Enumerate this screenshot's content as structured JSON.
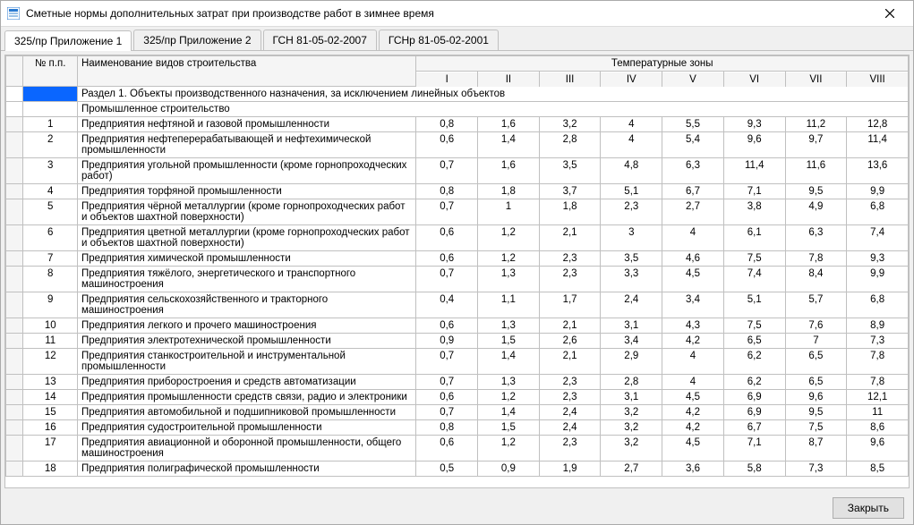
{
  "window": {
    "title": "Сметные нормы дополнительных затрат при производстве работ в зимнее время"
  },
  "tabs": {
    "items": [
      {
        "label": "325/пр Приложение 1",
        "active": true
      },
      {
        "label": "325/пр Приложение 2",
        "active": false
      },
      {
        "label": "ГСН 81-05-02-2007",
        "active": false
      },
      {
        "label": "ГСНр 81-05-02-2001",
        "active": false
      }
    ]
  },
  "table": {
    "headers": {
      "num": "№ п.п.",
      "name": "Наименование видов строительства",
      "zones_title": "Температурные зоны",
      "zones": [
        "I",
        "II",
        "III",
        "IV",
        "V",
        "VI",
        "VII",
        "VIII"
      ]
    },
    "rows": [
      {
        "type": "section1",
        "name": "Раздел 1. Объекты производственного назначения, за исключением линейных объектов"
      },
      {
        "type": "section",
        "name": "Промышленное строительство"
      },
      {
        "type": "data",
        "num": "1",
        "name": "Предприятия нефтяной и газовой промышленности",
        "v": [
          "0,8",
          "1,6",
          "3,2",
          "4",
          "5,5",
          "9,3",
          "11,2",
          "12,8"
        ]
      },
      {
        "type": "data",
        "num": "2",
        "name": "Предприятия нефтеперерабатывающей и нефтехимической промышленности",
        "v": [
          "0,6",
          "1,4",
          "2,8",
          "4",
          "5,4",
          "9,6",
          "9,7",
          "11,4"
        ]
      },
      {
        "type": "data",
        "num": "3",
        "name": "Предприятия угольной промышленности (кроме горнопроходческих работ)",
        "v": [
          "0,7",
          "1,6",
          "3,5",
          "4,8",
          "6,3",
          "11,4",
          "11,6",
          "13,6"
        ]
      },
      {
        "type": "data",
        "num": "4",
        "name": "Предприятия торфяной промышленности",
        "v": [
          "0,8",
          "1,8",
          "3,7",
          "5,1",
          "6,7",
          "7,1",
          "9,5",
          "9,9"
        ]
      },
      {
        "type": "data",
        "num": "5",
        "name": "Предприятия чёрной металлургии (кроме горнопроходческих работ и объектов шахтной поверхности)",
        "v": [
          "0,7",
          "1",
          "1,8",
          "2,3",
          "2,7",
          "3,8",
          "4,9",
          "6,8"
        ]
      },
      {
        "type": "data",
        "num": "6",
        "name": "Предприятия цветной металлургии (кроме горнопроходческих работ и объектов шахтной поверхности)",
        "v": [
          "0,6",
          "1,2",
          "2,1",
          "3",
          "4",
          "6,1",
          "6,3",
          "7,4"
        ]
      },
      {
        "type": "data",
        "num": "7",
        "name": "Предприятия химической промышленности",
        "v": [
          "0,6",
          "1,2",
          "2,3",
          "3,5",
          "4,6",
          "7,5",
          "7,8",
          "9,3"
        ]
      },
      {
        "type": "data",
        "num": "8",
        "name": "Предприятия тяжёлого, энергетического и транспортного машиностроения",
        "v": [
          "0,7",
          "1,3",
          "2,3",
          "3,3",
          "4,5",
          "7,4",
          "8,4",
          "9,9"
        ]
      },
      {
        "type": "data",
        "num": "9",
        "name": "Предприятия сельскохозяйственного и тракторного машиностроения",
        "v": [
          "0,4",
          "1,1",
          "1,7",
          "2,4",
          "3,4",
          "5,1",
          "5,7",
          "6,8"
        ]
      },
      {
        "type": "data",
        "num": "10",
        "name": "Предприятия легкого и прочего машиностроения",
        "v": [
          "0,6",
          "1,3",
          "2,1",
          "3,1",
          "4,3",
          "7,5",
          "7,6",
          "8,9"
        ]
      },
      {
        "type": "data",
        "num": "11",
        "name": "Предприятия электротехнической промышленности",
        "v": [
          "0,9",
          "1,5",
          "2,6",
          "3,4",
          "4,2",
          "6,5",
          "7",
          "7,3"
        ]
      },
      {
        "type": "data",
        "num": "12",
        "name": "Предприятия станкостроительной и инструментальной промышленности",
        "v": [
          "0,7",
          "1,4",
          "2,1",
          "2,9",
          "4",
          "6,2",
          "6,5",
          "7,8"
        ]
      },
      {
        "type": "data",
        "num": "13",
        "name": "Предприятия приборостроения и средств автоматизации",
        "v": [
          "0,7",
          "1,3",
          "2,3",
          "2,8",
          "4",
          "6,2",
          "6,5",
          "7,8"
        ]
      },
      {
        "type": "data",
        "num": "14",
        "name": "Предприятия промышленности средств связи, радио и электроники",
        "v": [
          "0,6",
          "1,2",
          "2,3",
          "3,1",
          "4,5",
          "6,9",
          "9,6",
          "12,1"
        ]
      },
      {
        "type": "data",
        "num": "15",
        "name": "Предприятия автомобильной и подшипниковой промышленности",
        "v": [
          "0,7",
          "1,4",
          "2,4",
          "3,2",
          "4,2",
          "6,9",
          "9,5",
          "11"
        ]
      },
      {
        "type": "data",
        "num": "16",
        "name": "Предприятия судостроительной промышленности",
        "v": [
          "0,8",
          "1,5",
          "2,4",
          "3,2",
          "4,2",
          "6,7",
          "7,5",
          "8,6"
        ]
      },
      {
        "type": "data",
        "num": "17",
        "name": "Предприятия авиационной и оборонной промышленности, общего машиностроения",
        "v": [
          "0,6",
          "1,2",
          "2,3",
          "3,2",
          "4,5",
          "7,1",
          "8,7",
          "9,6"
        ]
      },
      {
        "type": "data",
        "num": "18",
        "name": "Предприятия полиграфической промышленности",
        "v": [
          "0,5",
          "0,9",
          "1,9",
          "2,7",
          "3,6",
          "5,8",
          "7,3",
          "8,5"
        ]
      }
    ]
  },
  "footer": {
    "close_label": "Закрыть"
  },
  "style": {
    "grid_border": "#c0c0c0",
    "bg": "#f0f0f0",
    "header_bg": "#f5f5f5",
    "highlight": "#0a66ff"
  }
}
